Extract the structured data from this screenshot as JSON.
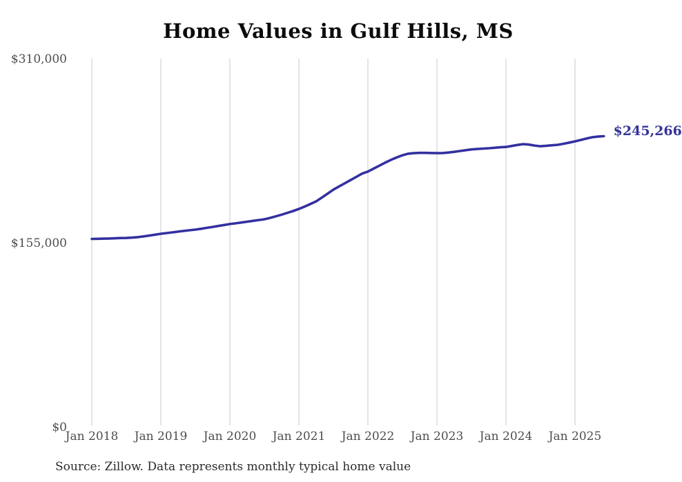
{
  "title": "Home Values in Gulf Hills, MS",
  "source_note": "Source: Zillow. Data represents monthly typical home value",
  "colors": {
    "line": "#3330a0",
    "end_label": "#333399",
    "gridline": "#c9c9c9",
    "tick_text": "#4d4d4d",
    "title_text": "#0b0b0b",
    "source_text": "#2b2b2b",
    "background": "#ffffff"
  },
  "chart_data": {
    "type": "line",
    "title": "Home Values in Gulf Hills, MS",
    "xlabel": "",
    "ylabel": "",
    "ylim": [
      0,
      310000
    ],
    "y_ticks": [
      {
        "value": 0,
        "label": "$0"
      },
      {
        "value": 155000,
        "label": "$155,000"
      },
      {
        "value": 310000,
        "label": "$310,000"
      }
    ],
    "x_ticks": [
      {
        "month_index": 0,
        "label": "Jan 2018"
      },
      {
        "month_index": 12,
        "label": "Jan 2019"
      },
      {
        "month_index": 24,
        "label": "Jan 2020"
      },
      {
        "month_index": 36,
        "label": "Jan 2021"
      },
      {
        "month_index": 48,
        "label": "Jan 2022"
      },
      {
        "month_index": 60,
        "label": "Jan 2023"
      },
      {
        "month_index": 72,
        "label": "Jan 2024"
      },
      {
        "month_index": 84,
        "label": "Jan 2025"
      }
    ],
    "grid": "vertical-only",
    "legend": "none",
    "series": [
      {
        "name": "Monthly typical home value",
        "months": [
          "2018-01",
          "2018-02",
          "2018-03",
          "2018-04",
          "2018-05",
          "2018-06",
          "2018-07",
          "2018-08",
          "2018-09",
          "2018-10",
          "2018-11",
          "2018-12",
          "2019-01",
          "2019-02",
          "2019-03",
          "2019-04",
          "2019-05",
          "2019-06",
          "2019-07",
          "2019-08",
          "2019-09",
          "2019-10",
          "2019-11",
          "2019-12",
          "2020-01",
          "2020-02",
          "2020-03",
          "2020-04",
          "2020-05",
          "2020-06",
          "2020-07",
          "2020-08",
          "2020-09",
          "2020-10",
          "2020-11",
          "2020-12",
          "2021-01",
          "2021-02",
          "2021-03",
          "2021-04",
          "2021-05",
          "2021-06",
          "2021-07",
          "2021-08",
          "2021-09",
          "2021-10",
          "2021-11",
          "2021-12",
          "2022-01",
          "2022-02",
          "2022-03",
          "2022-04",
          "2022-05",
          "2022-06",
          "2022-07",
          "2022-08",
          "2022-09",
          "2022-10",
          "2022-11",
          "2022-12",
          "2023-01",
          "2023-02",
          "2023-03",
          "2023-04",
          "2023-05",
          "2023-06",
          "2023-07",
          "2023-08",
          "2023-09",
          "2023-10",
          "2023-11",
          "2023-12",
          "2024-01",
          "2024-02",
          "2024-03",
          "2024-04",
          "2024-05",
          "2024-06",
          "2024-07",
          "2024-08",
          "2024-09",
          "2024-10",
          "2024-11",
          "2024-12",
          "2025-01",
          "2025-02",
          "2025-03",
          "2025-04",
          "2025-05",
          "2025-06"
        ],
        "values": [
          158800,
          158900,
          159000,
          159100,
          159300,
          159500,
          159600,
          159900,
          160300,
          160900,
          161600,
          162400,
          163100,
          163700,
          164300,
          164900,
          165500,
          166100,
          166600,
          167300,
          168100,
          168900,
          169700,
          170500,
          171300,
          171900,
          172600,
          173300,
          174000,
          174700,
          175300,
          176500,
          177800,
          179200,
          180700,
          182300,
          184000,
          186000,
          188200,
          190400,
          193600,
          196900,
          200300,
          203000,
          205700,
          208400,
          211100,
          213800,
          215500,
          218000,
          220500,
          223000,
          225300,
          227400,
          229200,
          230500,
          231000,
          231200,
          231200,
          231100,
          231000,
          231100,
          231500,
          232100,
          232800,
          233500,
          234100,
          234500,
          234800,
          235100,
          235500,
          235900,
          236200,
          237000,
          237900,
          238600,
          238200,
          237400,
          236800,
          237200,
          237600,
          238000,
          238900,
          239900,
          240900,
          242100,
          243300,
          244400,
          244900,
          245266
        ]
      }
    ],
    "last_point": {
      "month": "2025-06",
      "value": 245266,
      "label": "$245,266"
    }
  }
}
